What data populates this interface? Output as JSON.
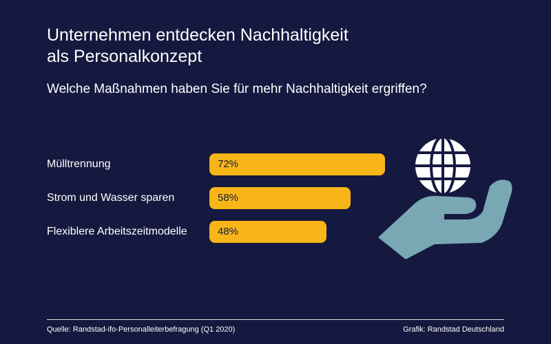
{
  "header": {
    "title_line1": "Unternehmen entdecken Nachhaltigkeit",
    "title_line2": "als Personalkonzept",
    "subtitle": "Welche Maßnahmen haben Sie für mehr Nachhaltigkeit ergriffen?"
  },
  "chart_data": {
    "type": "bar",
    "orientation": "horizontal",
    "categories": [
      "Mülltrennung",
      "Strom und Wasser sparen",
      "Flexiblere Arbeitszeitmodelle"
    ],
    "values": [
      72,
      58,
      48
    ],
    "value_labels": [
      "72%",
      "58%",
      "48%"
    ],
    "unit": "%",
    "xlim": [
      0,
      100
    ],
    "bar_color": "#f8b518",
    "grid": false,
    "legend": "none"
  },
  "icons": {
    "globe": "globe-icon",
    "hand": "open-hand-icon"
  },
  "colors": {
    "background": "#15193f",
    "bar": "#f8b518",
    "hand": "#79a7b4",
    "text": "#ffffff"
  },
  "footer": {
    "source": "Quelle: Randstad-ifo-Personalleiterbefragung (Q1 2020)",
    "credit": "Grafik: Randstad Deutschland"
  }
}
